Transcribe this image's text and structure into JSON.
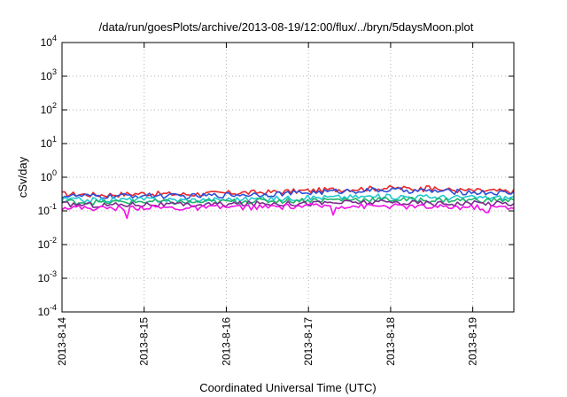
{
  "chart_data": {
    "type": "line",
    "title": "/data/run/goesPlots/archive/2013-08-19/12:00/flux/../bryn/5daysMoon.plot",
    "xlabel": "Coordinated Universal Time (UTC)",
    "ylabel": "cSv/day",
    "y_scale": "log",
    "ylim": [
      0.0001,
      10000
    ],
    "y_ticks": [
      {
        "value": 0.0001,
        "base": "10",
        "exp": "-4"
      },
      {
        "value": 0.001,
        "base": "10",
        "exp": "-3"
      },
      {
        "value": 0.01,
        "base": "10",
        "exp": "-2"
      },
      {
        "value": 0.1,
        "base": "10",
        "exp": "-1"
      },
      {
        "value": 1,
        "base": "10",
        "exp": "0"
      },
      {
        "value": 10,
        "base": "10",
        "exp": "1"
      },
      {
        "value": 100,
        "base": "10",
        "exp": "2"
      },
      {
        "value": 1000,
        "base": "10",
        "exp": "3"
      },
      {
        "value": 10000,
        "base": "10",
        "exp": "4"
      }
    ],
    "xlim": [
      "2013-08-14 00:00",
      "2013-08-19 12:00"
    ],
    "x_ticks": [
      "2013-8-14",
      "2013-8-15",
      "2013-8-16",
      "2013-8-17",
      "2013-8-18",
      "2013-8-19"
    ],
    "grid": true,
    "x_start": "2013-08-14 00:00",
    "x_end": "2013-08-19 12:00",
    "series": [
      {
        "color": "#e8262a",
        "base": [
          0.32,
          0.3,
          0.33,
          0.31,
          0.34,
          0.36,
          0.4,
          0.45,
          0.48,
          0.44,
          0.4,
          0.38
        ],
        "spikes": [
          [
            0.81,
            0.55
          ]
        ]
      },
      {
        "color": "#2f4fd8",
        "base": [
          0.28,
          0.27,
          0.29,
          0.27,
          0.3,
          0.32,
          0.35,
          0.4,
          0.42,
          0.39,
          0.36,
          0.34
        ],
        "spikes": []
      },
      {
        "color": "#22c8d0",
        "base": [
          0.22,
          0.21,
          0.22,
          0.21,
          0.22,
          0.23,
          0.25,
          0.26,
          0.27,
          0.26,
          0.25,
          0.25
        ],
        "spikes": []
      },
      {
        "color": "#1fb36a",
        "base": [
          0.19,
          0.18,
          0.19,
          0.18,
          0.19,
          0.2,
          0.21,
          0.22,
          0.22,
          0.21,
          0.21,
          0.21
        ],
        "spikes": []
      },
      {
        "color": "#7a2a8c",
        "base": [
          0.16,
          0.15,
          0.16,
          0.15,
          0.16,
          0.17,
          0.17,
          0.18,
          0.18,
          0.17,
          0.17,
          0.17
        ],
        "spikes": []
      },
      {
        "color": "#f20fe6",
        "base": [
          0.13,
          0.12,
          0.13,
          0.12,
          0.13,
          0.13,
          0.14,
          0.14,
          0.14,
          0.13,
          0.13,
          0.13
        ],
        "spikes": [
          [
            0.145,
            0.06
          ],
          [
            0.6,
            0.075
          ],
          [
            0.94,
            0.09
          ]
        ]
      }
    ]
  }
}
